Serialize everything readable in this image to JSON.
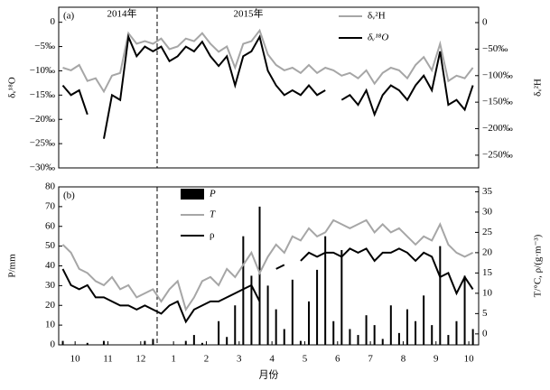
{
  "chart_data": [
    {
      "type": "line",
      "panel_label": "(a)",
      "ylabel": "δᵥ¹⁸O",
      "y2label": "δᵥ²H",
      "annotations": [
        "2014年",
        "2015年"
      ],
      "vline": 3,
      "xlim": [
        0,
        12.8
      ],
      "ylim": [
        -30,
        3.1
      ],
      "y2lim": [
        -274,
        29
      ],
      "yticks": [
        0,
        {
          "value": -5,
          "label": "−5‰"
        },
        {
          "value": -10,
          "label": "−10‰"
        },
        {
          "value": -15,
          "label": "−15‰"
        },
        {
          "value": -20,
          "label": "−20‰"
        },
        {
          "value": -25,
          "label": "−25‰"
        },
        {
          "value": -30,
          "label": "−30‰"
        }
      ],
      "y2ticks": [
        0,
        {
          "value": -50,
          "label": "−50‰"
        },
        {
          "value": -100,
          "label": "−100‰"
        },
        {
          "value": -150,
          "label": "−150‰"
        },
        {
          "value": -200,
          "label": "−200‰"
        },
        {
          "value": -250,
          "label": "−250‰"
        }
      ],
      "x": [
        0.125,
        0.375,
        0.625,
        0.875,
        1.125,
        1.375,
        1.625,
        1.875,
        2.125,
        2.375,
        2.625,
        2.875,
        3.125,
        3.375,
        3.625,
        3.875,
        4.125,
        4.375,
        4.625,
        4.875,
        5.125,
        5.375,
        5.625,
        5.875,
        6.125,
        6.375,
        6.625,
        6.875,
        7.125,
        7.375,
        7.625,
        7.875,
        8.125,
        8.375,
        8.625,
        8.875,
        9.125,
        9.375,
        9.625,
        9.875,
        10.125,
        10.375,
        10.625,
        10.875,
        11.125,
        11.375,
        11.625,
        11.875,
        12.125,
        12.375,
        12.625
      ],
      "series": [
        {
          "name": "δᵥ²H",
          "color": "#a6a6a6",
          "axis": "y2",
          "values": [
            -85,
            -90,
            -80,
            -110,
            -105,
            -130,
            -100,
            -95,
            -20,
            -40,
            -35,
            -40,
            -30,
            -50,
            -45,
            -30,
            -35,
            -20,
            -40,
            -55,
            -45,
            -85,
            -40,
            -35,
            -15,
            -60,
            -80,
            -90,
            -85,
            -95,
            -80,
            -95,
            -85,
            -90,
            -100,
            -95,
            -105,
            -90,
            -115,
            -95,
            -85,
            -90,
            -105,
            -80,
            -65,
            -90,
            -40,
            -110,
            -100,
            -105,
            -85
          ]
        },
        {
          "name": "δᵥ¹⁸O",
          "color": "#000000",
          "values": [
            -13,
            -15,
            -14,
            -19,
            null,
            -24,
            -15,
            -16,
            -3,
            -7,
            -5,
            -6,
            -5,
            -8,
            -7,
            -5,
            -6,
            -4,
            -7,
            -9,
            -7,
            -13,
            -7,
            -6,
            -3,
            -10,
            -13,
            -15,
            -14,
            -15,
            -13,
            -15,
            -14,
            null,
            -16,
            -15,
            -17,
            -14,
            -19,
            -15,
            -13,
            -14,
            -16,
            -13,
            -11,
            -14,
            -6,
            -17,
            -16,
            -18,
            -13
          ]
        }
      ]
    },
    {
      "type": "line",
      "panel_label": "(b)",
      "ylabel": "P/mm",
      "y2label": "T/°C, ρ/(g·m⁻³)",
      "xlabel": "月份",
      "vline": 3,
      "xlim": [
        0,
        12.8
      ],
      "ylim": [
        0,
        80
      ],
      "y2lim": [
        -2.7,
        36.2
      ],
      "yticks": [
        0,
        10,
        20,
        30,
        40,
        50,
        60,
        70,
        80
      ],
      "y2ticks": [
        0,
        5,
        10,
        15,
        20,
        25,
        30,
        35
      ],
      "xticks": [
        {
          "value": 0.5,
          "label": "10"
        },
        {
          "value": 1.5,
          "label": "11"
        },
        {
          "value": 2.5,
          "label": "12"
        },
        {
          "value": 3.5,
          "label": "1"
        },
        {
          "value": 4.5,
          "label": "2"
        },
        {
          "value": 5.5,
          "label": "3"
        },
        {
          "value": 6.5,
          "label": "4"
        },
        {
          "value": 7.5,
          "label": "5"
        },
        {
          "value": 8.5,
          "label": "6"
        },
        {
          "value": 9.5,
          "label": "7"
        },
        {
          "value": 10.5,
          "label": "8"
        },
        {
          "value": 11.5,
          "label": "9"
        },
        {
          "value": 12.5,
          "label": "10"
        }
      ],
      "x": [
        0.125,
        0.375,
        0.625,
        0.875,
        1.125,
        1.375,
        1.625,
        1.875,
        2.125,
        2.375,
        2.625,
        2.875,
        3.125,
        3.375,
        3.625,
        3.875,
        4.125,
        4.375,
        4.625,
        4.875,
        5.125,
        5.375,
        5.625,
        5.875,
        6.125,
        6.375,
        6.625,
        6.875,
        7.125,
        7.375,
        7.625,
        7.875,
        8.125,
        8.375,
        8.625,
        8.875,
        9.125,
        9.375,
        9.625,
        9.875,
        10.125,
        10.375,
        10.625,
        10.875,
        11.125,
        11.375,
        11.625,
        11.875,
        12.125,
        12.375,
        12.625
      ],
      "series": [
        {
          "name": "P",
          "type": "bar",
          "color": "#000000",
          "values": [
            2,
            0,
            0,
            1,
            0,
            2,
            0,
            0,
            0,
            0,
            2,
            3,
            0,
            0,
            0,
            2,
            5,
            1,
            0,
            12,
            4,
            20,
            55,
            35,
            70,
            30,
            18,
            8,
            33,
            2,
            22,
            38,
            55,
            12,
            48,
            8,
            5,
            15,
            10,
            3,
            20,
            6,
            18,
            12,
            25,
            10,
            50,
            5,
            12,
            35,
            8
          ]
        },
        {
          "name": "T",
          "color": "#a6a6a6",
          "axis": "y2",
          "values": [
            22,
            20,
            16,
            15,
            13,
            12,
            14,
            11,
            12,
            9,
            10,
            11,
            8,
            11,
            13,
            6,
            9,
            13,
            14,
            12,
            16,
            14,
            17,
            20,
            15,
            19,
            22,
            20,
            24,
            23,
            26,
            24,
            25,
            28,
            27,
            26,
            27,
            28,
            25,
            27,
            25,
            26,
            24,
            22,
            24,
            23,
            27,
            22,
            20,
            19,
            20
          ]
        },
        {
          "name": "ρ",
          "color": "#000000",
          "axis": "y2",
          "values": [
            16,
            12,
            11,
            12,
            9,
            9,
            8,
            7,
            7,
            6,
            7,
            6,
            5,
            7,
            8,
            3,
            6,
            7,
            8,
            8,
            9,
            10,
            11,
            12,
            8,
            null,
            16,
            17,
            null,
            18,
            20,
            19,
            20,
            20,
            19,
            21,
            20,
            21,
            18,
            20,
            20,
            21,
            20,
            18,
            20,
            19,
            14,
            15,
            10,
            14,
            11
          ]
        }
      ]
    }
  ]
}
